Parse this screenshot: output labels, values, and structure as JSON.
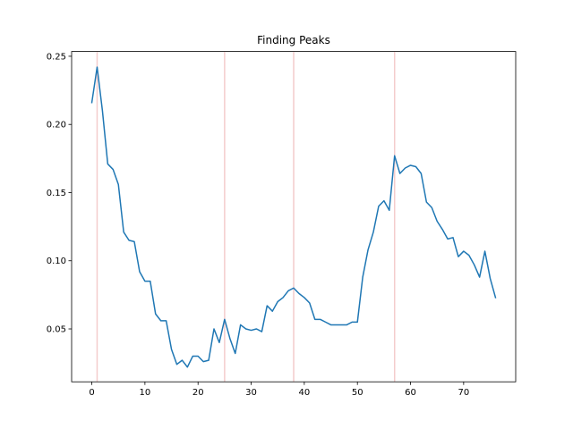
{
  "chart_data": {
    "type": "line",
    "title": "Finding Peaks",
    "xlabel": "",
    "ylabel": "",
    "xlim": [
      -3.8,
      79.8
    ],
    "ylim": [
      0.0112,
      0.2535
    ],
    "x_ticks": [
      0,
      10,
      20,
      30,
      40,
      50,
      60,
      70
    ],
    "y_ticks": [
      0.05,
      0.1,
      0.15,
      0.2,
      0.25
    ],
    "y_tick_labels": [
      "0.05",
      "0.10",
      "0.15",
      "0.20",
      "0.25"
    ],
    "grid": false,
    "series": [
      {
        "color": "#1f77b4",
        "x": [
          0,
          1,
          2,
          3,
          4,
          5,
          6,
          7,
          8,
          9,
          10,
          11,
          12,
          13,
          14,
          15,
          16,
          17,
          18,
          19,
          20,
          21,
          22,
          23,
          24,
          25,
          26,
          27,
          28,
          29,
          30,
          31,
          32,
          33,
          34,
          35,
          36,
          37,
          38,
          39,
          40,
          41,
          42,
          43,
          44,
          45,
          46,
          47,
          48,
          49,
          50,
          51,
          52,
          53,
          54,
          55,
          56,
          57,
          58,
          59,
          60,
          61,
          62,
          63,
          64,
          65,
          66,
          67,
          68,
          69,
          70,
          71,
          72,
          73,
          74,
          75,
          76
        ],
        "values": [
          0.216,
          0.242,
          0.21,
          0.171,
          0.167,
          0.156,
          0.121,
          0.115,
          0.114,
          0.092,
          0.085,
          0.085,
          0.061,
          0.056,
          0.056,
          0.035,
          0.024,
          0.027,
          0.022,
          0.03,
          0.03,
          0.026,
          0.027,
          0.05,
          0.04,
          0.057,
          0.043,
          0.032,
          0.053,
          0.05,
          0.049,
          0.05,
          0.048,
          0.067,
          0.063,
          0.07,
          0.073,
          0.078,
          0.08,
          0.076,
          0.073,
          0.069,
          0.057,
          0.057,
          0.055,
          0.053,
          0.053,
          0.053,
          0.053,
          0.055,
          0.055,
          0.088,
          0.108,
          0.121,
          0.14,
          0.144,
          0.137,
          0.177,
          0.164,
          0.168,
          0.17,
          0.169,
          0.164,
          0.143,
          0.139,
          0.129,
          0.123,
          0.116,
          0.117,
          0.103,
          0.107,
          0.104,
          0.097,
          0.088,
          0.107,
          0.087,
          0.073
        ]
      }
    ],
    "peaks": [
      1,
      25,
      38,
      57
    ],
    "peak_line_color": "#f4cccc"
  }
}
